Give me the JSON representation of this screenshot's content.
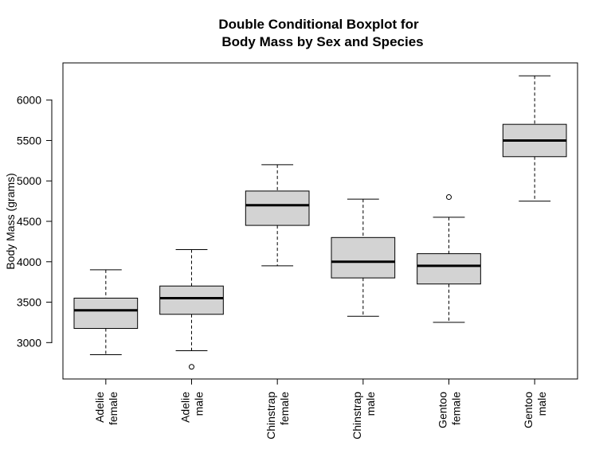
{
  "chart_data": {
    "type": "boxplot",
    "title": [
      "Double Conditional Boxplot for",
      "Body Mass by Sex and Species"
    ],
    "xlabel": "",
    "ylabel": "Body Mass (grams)",
    "ylim": [
      2550,
      6460
    ],
    "yticks": [
      3000,
      3500,
      4000,
      4500,
      5000,
      5500,
      6000
    ],
    "grid": false,
    "categories": [
      [
        "Adelie",
        "female"
      ],
      [
        "Adelie",
        "male"
      ],
      [
        "Chinstrap",
        "female"
      ],
      [
        "Chinstrap",
        "male"
      ],
      [
        "Gentoo",
        "female"
      ],
      [
        "Gentoo",
        "male"
      ]
    ],
    "boxes": [
      {
        "whisker_low": 2850,
        "q1": 3175,
        "median": 3400,
        "q3": 3550,
        "whisker_high": 3900,
        "outliers": []
      },
      {
        "whisker_low": 2900,
        "q1": 3350,
        "median": 3550,
        "q3": 3700,
        "whisker_high": 4150,
        "outliers": [
          2700
        ]
      },
      {
        "whisker_low": 3950,
        "q1": 4450,
        "median": 4700,
        "q3": 4875,
        "whisker_high": 5200,
        "outliers": []
      },
      {
        "whisker_low": 3325,
        "q1": 3800,
        "median": 4000,
        "q3": 4300,
        "whisker_high": 4775,
        "outliers": []
      },
      {
        "whisker_low": 3250,
        "q1": 3725,
        "median": 3950,
        "q3": 4100,
        "whisker_high": 4550,
        "outliers": [
          4800
        ]
      },
      {
        "whisker_low": 4750,
        "q1": 5300,
        "median": 5500,
        "q3": 5700,
        "whisker_high": 6300,
        "outliers": []
      }
    ],
    "colors": {
      "box_fill": "#d3d3d3",
      "stroke": "#000000",
      "background": "#ffffff"
    }
  }
}
